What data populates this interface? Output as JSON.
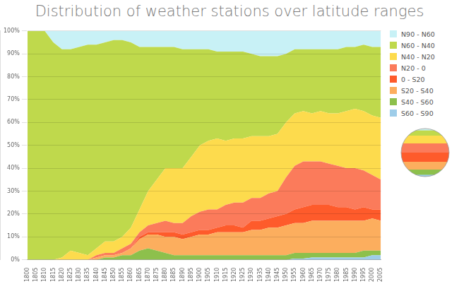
{
  "chart_data": {
    "type": "area",
    "title": "Distribution of weather stations over latitude ranges",
    "stacked": true,
    "grid": true,
    "legend": "right",
    "categories": [
      "1800",
      "1805",
      "1810",
      "1815",
      "1820",
      "1825",
      "1830",
      "1835",
      "1840",
      "1845",
      "1850",
      "1855",
      "1860",
      "1865",
      "1870",
      "1875",
      "1880",
      "1885",
      "1890",
      "1895",
      "1900",
      "1905",
      "1910",
      "1915",
      "1920",
      "1925",
      "1930",
      "1935",
      "1940",
      "1945",
      "1950",
      "1955",
      "1960",
      "1965",
      "1970",
      "1975",
      "1980",
      "1985",
      "1990",
      "1995",
      "2000",
      "2005"
    ],
    "ylim": [
      0,
      100
    ],
    "yticks": [
      {
        "value": 0,
        "label": "0%"
      },
      {
        "value": 10,
        "label": "10%"
      },
      {
        "value": 20,
        "label": "20%"
      },
      {
        "value": 30,
        "label": "30%"
      },
      {
        "value": 40,
        "label": "40%"
      },
      {
        "value": 50,
        "label": "50%"
      },
      {
        "value": 60,
        "label": "60%"
      },
      {
        "value": 70,
        "label": "70%"
      },
      {
        "value": 80,
        "label": "80%"
      },
      {
        "value": 90,
        "label": "90%"
      },
      {
        "value": 100,
        "label": "100%"
      }
    ],
    "series": [
      {
        "name": "N90 - N60",
        "color": "#c8f1f6",
        "values": [
          0,
          0,
          0,
          5,
          8,
          8,
          7,
          6,
          6,
          5,
          4,
          4,
          5,
          7,
          7,
          7,
          7,
          7,
          8,
          8,
          8,
          8,
          9,
          9,
          9,
          9,
          10,
          11,
          11,
          11,
          10,
          8,
          8,
          8,
          8,
          8,
          8,
          7,
          7,
          6,
          7,
          7
        ]
      },
      {
        "name": "N60 - N40",
        "color": "#bfd94c",
        "values": [
          100,
          100,
          100,
          95,
          91,
          88,
          90,
          92,
          89,
          87,
          88,
          86,
          81,
          71,
          63,
          58,
          53,
          53,
          52,
          47,
          42,
          40,
          38,
          39,
          38,
          38,
          36,
          35,
          35,
          34,
          30,
          28,
          27,
          28,
          27,
          28,
          28,
          28,
          27,
          29,
          30,
          31
        ]
      },
      {
        "name": "N40 - N20",
        "color": "#fddb4d",
        "values": [
          0,
          0,
          0,
          0,
          1,
          4,
          3,
          2,
          3,
          5,
          5,
          5,
          7,
          10,
          15,
          19,
          23,
          24,
          24,
          26,
          29,
          30,
          31,
          28,
          28,
          28,
          27,
          27,
          25,
          25,
          24,
          23,
          22,
          21,
          22,
          22,
          23,
          25,
          26,
          26,
          26,
          27
        ]
      },
      {
        "name": "N20 - 0",
        "color": "#fb7b5b",
        "values": [
          0,
          0,
          0,
          0,
          0,
          0,
          0,
          0,
          1,
          1,
          1,
          2,
          2,
          2,
          3,
          4,
          5,
          4,
          5,
          7,
          8,
          9,
          8,
          9,
          10,
          11,
          10,
          10,
          11,
          11,
          16,
          19,
          20,
          19,
          19,
          18,
          18,
          17,
          18,
          16,
          15,
          13
        ]
      },
      {
        "name": "0 - S20",
        "color": "#fe5b2b",
        "values": [
          0,
          0,
          0,
          0,
          0,
          0,
          0,
          0,
          0,
          0,
          0,
          0,
          0,
          1,
          1,
          1,
          2,
          2,
          2,
          2,
          2,
          2,
          2,
          3,
          3,
          2,
          4,
          4,
          4,
          5,
          5,
          6,
          7,
          7,
          7,
          7,
          6,
          6,
          5,
          6,
          4,
          5
        ]
      },
      {
        "name": "S20 - S40",
        "color": "#fcae5e",
        "values": [
          0,
          0,
          0,
          0,
          0,
          0,
          0,
          0,
          1,
          1,
          1,
          1,
          3,
          5,
          6,
          7,
          7,
          8,
          7,
          8,
          9,
          9,
          10,
          10,
          10,
          10,
          11,
          11,
          12,
          12,
          13,
          13,
          13,
          14,
          14,
          14,
          14,
          14,
          14,
          13,
          14,
          13
        ]
      },
      {
        "name": "S40 - S60",
        "color": "#8dc04c",
        "values": [
          0,
          0,
          0,
          0,
          0,
          0,
          0,
          0,
          0,
          1,
          1,
          2,
          2,
          4,
          5,
          4,
          3,
          2,
          2,
          2,
          2,
          2,
          2,
          2,
          2,
          2,
          2,
          2,
          2,
          2,
          2,
          2.5,
          2.5,
          2,
          2,
          2,
          2,
          2,
          2,
          3,
          2,
          2
        ]
      },
      {
        "name": "S60 - S90",
        "color": "#9ecde9",
        "values": [
          0,
          0,
          0,
          0,
          0,
          0,
          0,
          0,
          0,
          0,
          0,
          0,
          0,
          0,
          0,
          0,
          0,
          0,
          0,
          0,
          0,
          0,
          0,
          0,
          0,
          0,
          0,
          0,
          0,
          0,
          0,
          0.5,
          0.5,
          1,
          1,
          1,
          1,
          1,
          1,
          1,
          2,
          2
        ]
      }
    ]
  }
}
